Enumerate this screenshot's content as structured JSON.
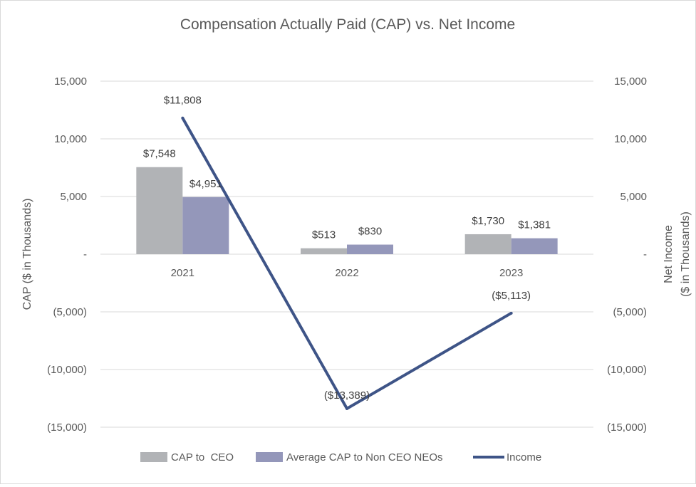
{
  "chart_data": {
    "type": "bar",
    "title": "Compensation Actually Paid (CAP) vs. Net Income",
    "categories": [
      "2021",
      "2022",
      "2023"
    ],
    "series": [
      {
        "name": "CAP to  CEO",
        "kind": "bar",
        "axis": "left",
        "color": "#b1b3b6",
        "values": [
          7548,
          513,
          1730
        ],
        "labels": [
          "$7,548",
          "$513",
          "$1,730"
        ]
      },
      {
        "name": "Average CAP to Non CEO NEOs",
        "kind": "bar",
        "axis": "left",
        "color": "#9497ba",
        "values": [
          4951,
          830,
          1381
        ],
        "labels": [
          "$4,951",
          "$830",
          "$1,381"
        ]
      },
      {
        "name": "Income",
        "kind": "line",
        "axis": "right",
        "color": "#3e5487",
        "values": [
          11808,
          -13389,
          -5113
        ],
        "labels": [
          "$11,808",
          "($13,389)",
          "($5,113)"
        ]
      }
    ],
    "ylabel": "CAP ($ in Thousands)",
    "y2label": [
      "Net Income",
      "($ in Thousands)"
    ],
    "ylim": [
      -15000,
      15000
    ],
    "y2lim": [
      -15000,
      15000
    ],
    "yticks": [
      15000,
      10000,
      5000,
      0,
      -5000,
      -10000,
      -15000
    ],
    "yticklabels": [
      "15,000",
      "10,000",
      "5,000",
      "-",
      "(5,000)",
      "(10,000)",
      "(15,000)"
    ],
    "grid": true,
    "legend_position": "bottom"
  }
}
